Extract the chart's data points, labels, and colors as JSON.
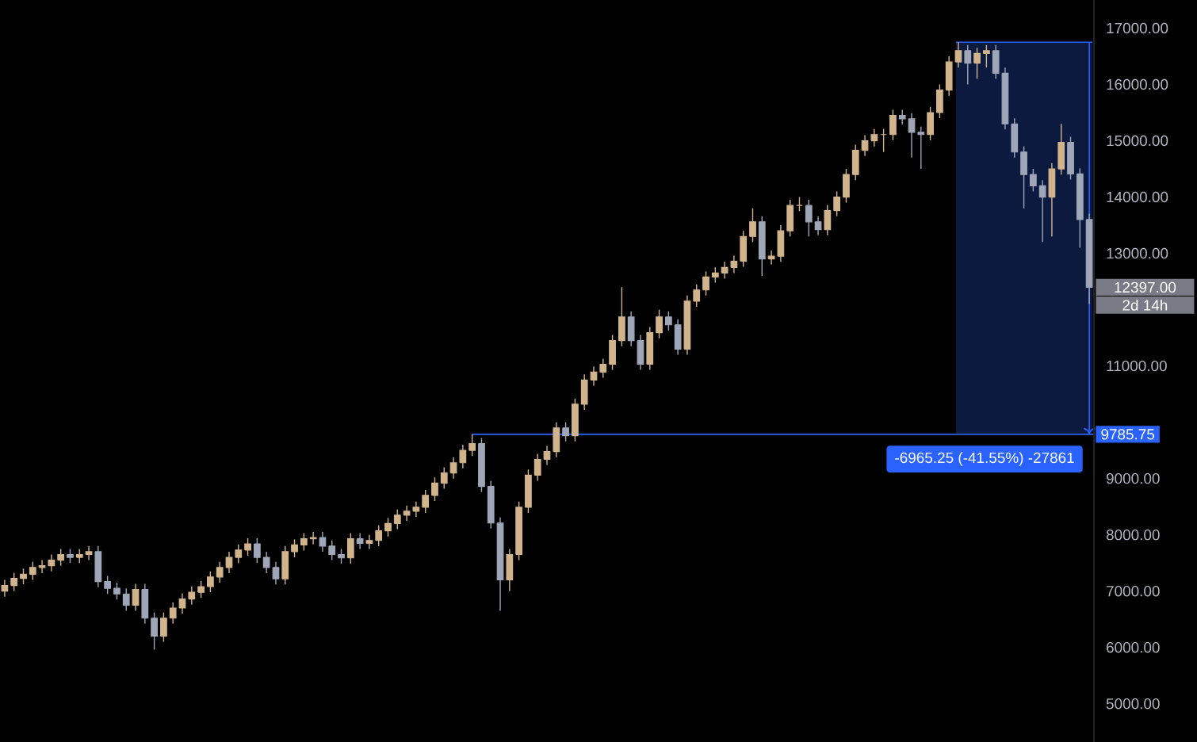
{
  "chart_data": {
    "type": "candlestick",
    "categories": [
      null,
      null,
      null,
      null,
      null,
      null,
      null,
      null,
      null,
      null,
      null,
      null,
      null,
      null,
      null,
      null,
      null,
      null,
      null,
      null,
      null,
      null,
      null,
      null,
      null,
      null,
      null,
      null,
      null,
      null,
      null,
      null,
      null,
      null,
      null,
      null,
      null,
      null,
      null,
      null,
      null,
      null,
      null,
      null,
      null,
      null,
      null,
      null,
      null,
      null,
      null,
      null,
      null,
      null,
      null,
      null,
      null,
      null,
      null,
      null,
      null,
      null,
      null,
      null,
      null,
      null,
      null,
      null,
      null,
      null,
      null,
      null,
      null,
      null,
      null,
      null,
      null,
      null,
      null,
      null,
      null,
      null,
      null,
      null,
      null,
      null,
      null,
      null,
      null,
      null,
      null,
      null,
      null,
      null,
      null,
      null,
      null,
      null,
      null,
      null,
      null,
      null,
      null,
      null,
      null,
      null,
      null,
      null,
      null,
      null,
      null,
      null,
      null,
      null,
      null,
      null,
      null
    ],
    "ohlc": [
      [
        7000,
        7200,
        6900,
        7100
      ],
      [
        7100,
        7325,
        7000,
        7225
      ],
      [
        7225,
        7400,
        7125,
        7300
      ],
      [
        7300,
        7520,
        7200,
        7420
      ],
      [
        7420,
        7550,
        7320,
        7450
      ],
      [
        7450,
        7650,
        7350,
        7550
      ],
      [
        7550,
        7750,
        7450,
        7650
      ],
      [
        7650,
        7750,
        7500,
        7600
      ],
      [
        7600,
        7750,
        7500,
        7650
      ],
      [
        7650,
        7800,
        7550,
        7700
      ],
      [
        7700,
        7800,
        7070,
        7170
      ],
      [
        7170,
        7270,
        6950,
        7050
      ],
      [
        7050,
        7150,
        6850,
        6950
      ],
      [
        6950,
        7050,
        6650,
        6750
      ],
      [
        6750,
        7130,
        6650,
        7030
      ],
      [
        7030,
        7130,
        6420,
        6520
      ],
      [
        6520,
        6620,
        5960,
        6200
      ],
      [
        6200,
        6620,
        6100,
        6520
      ],
      [
        6520,
        6800,
        6420,
        6700
      ],
      [
        6700,
        6960,
        6600,
        6860
      ],
      [
        6860,
        7080,
        6760,
        6980
      ],
      [
        6980,
        7180,
        6880,
        7080
      ],
      [
        7080,
        7350,
        6980,
        7250
      ],
      [
        7250,
        7520,
        7150,
        7420
      ],
      [
        7420,
        7700,
        7320,
        7600
      ],
      [
        7600,
        7830,
        7500,
        7730
      ],
      [
        7730,
        7940,
        7630,
        7840
      ],
      [
        7840,
        7940,
        7500,
        7600
      ],
      [
        7600,
        7700,
        7320,
        7420
      ],
      [
        7420,
        7520,
        7120,
        7220
      ],
      [
        7220,
        7800,
        7120,
        7700
      ],
      [
        7700,
        7920,
        7600,
        7820
      ],
      [
        7820,
        8030,
        7720,
        7930
      ],
      [
        7930,
        8050,
        7830,
        7950
      ],
      [
        7950,
        8050,
        7700,
        7800
      ],
      [
        7800,
        7900,
        7550,
        7650
      ],
      [
        7650,
        7750,
        7490,
        7590
      ],
      [
        7590,
        8030,
        7490,
        7930
      ],
      [
        7930,
        8030,
        7750,
        7850
      ],
      [
        7850,
        8000,
        7750,
        7900
      ],
      [
        7900,
        8170,
        7800,
        8070
      ],
      [
        8070,
        8300,
        7970,
        8200
      ],
      [
        8200,
        8450,
        8100,
        8350
      ],
      [
        8350,
        8520,
        8250,
        8420
      ],
      [
        8420,
        8590,
        8320,
        8490
      ],
      [
        8490,
        8800,
        8390,
        8700
      ],
      [
        8700,
        9020,
        8600,
        8920
      ],
      [
        8920,
        9200,
        8820,
        9100
      ],
      [
        9100,
        9380,
        9000,
        9280
      ],
      [
        9280,
        9600,
        9180,
        9500
      ],
      [
        9500,
        9785.75,
        9400,
        9620
      ],
      [
        9620,
        9720,
        8760,
        8860
      ],
      [
        8860,
        8960,
        8110,
        8210
      ],
      [
        8210,
        8310,
        6650,
        7200
      ],
      [
        7200,
        7750,
        7000,
        7650
      ],
      [
        7650,
        8590,
        7550,
        8490
      ],
      [
        8490,
        9160,
        8390,
        9060
      ],
      [
        9060,
        9440,
        8960,
        9340
      ],
      [
        9340,
        9580,
        9240,
        9480
      ],
      [
        9480,
        10000,
        9380,
        9900
      ],
      [
        9900,
        10000,
        9660,
        9760
      ],
      [
        9760,
        10420,
        9660,
        10320
      ],
      [
        10320,
        10850,
        10220,
        10750
      ],
      [
        10750,
        10990,
        10650,
        10890
      ],
      [
        10890,
        11130,
        10790,
        11030
      ],
      [
        11030,
        11550,
        10930,
        11450
      ],
      [
        11450,
        12400,
        11350,
        11870
      ],
      [
        11870,
        11970,
        11350,
        11450
      ],
      [
        11450,
        11550,
        10930,
        11030
      ],
      [
        11030,
        11690,
        10930,
        11590
      ],
      [
        11590,
        12000,
        11490,
        11870
      ],
      [
        11870,
        11970,
        11630,
        11730
      ],
      [
        11730,
        11830,
        11200,
        11300
      ],
      [
        11300,
        12250,
        11200,
        12150
      ],
      [
        12150,
        12450,
        12050,
        12350
      ],
      [
        12350,
        12680,
        12250,
        12580
      ],
      [
        12580,
        12750,
        12480,
        12650
      ],
      [
        12650,
        12850,
        12550,
        12750
      ],
      [
        12750,
        12960,
        12650,
        12860
      ],
      [
        12860,
        13400,
        12760,
        13300
      ],
      [
        13300,
        13800,
        13200,
        13560
      ],
      [
        13560,
        13660,
        12600,
        12900
      ],
      [
        12900,
        13050,
        12800,
        12950
      ],
      [
        12950,
        13500,
        12850,
        13400
      ],
      [
        13400,
        13950,
        13300,
        13850
      ],
      [
        13850,
        14000,
        13750,
        13850
      ],
      [
        13850,
        13950,
        13300,
        13560
      ],
      [
        13560,
        13660,
        13320,
        13420
      ],
      [
        13420,
        13860,
        13320,
        13760
      ],
      [
        13760,
        14100,
        13660,
        14000
      ],
      [
        14000,
        14500,
        13900,
        14400
      ],
      [
        14400,
        14930,
        14300,
        14830
      ],
      [
        14830,
        15100,
        14730,
        15000
      ],
      [
        15000,
        15210,
        14900,
        15110
      ],
      [
        15110,
        15210,
        14800,
        15110
      ],
      [
        15110,
        15550,
        15010,
        15450
      ],
      [
        15450,
        15550,
        15290,
        15390
      ],
      [
        15390,
        15490,
        14700,
        15150
      ],
      [
        15150,
        15250,
        14500,
        15110
      ],
      [
        15110,
        15600,
        15010,
        15500
      ],
      [
        15500,
        16000,
        15400,
        15900
      ],
      [
        15900,
        16500,
        15800,
        16400
      ],
      [
        16400,
        16751,
        16300,
        16600
      ],
      [
        16600,
        16700,
        16000,
        16380
      ],
      [
        16380,
        16650,
        16100,
        16550
      ],
      [
        16550,
        16700,
        16300,
        16600
      ],
      [
        16600,
        16700,
        16100,
        16200
      ],
      [
        16200,
        16300,
        15200,
        15300
      ],
      [
        15300,
        15400,
        14700,
        14800
      ],
      [
        14800,
        14900,
        13800,
        14400
      ],
      [
        14400,
        14500,
        14100,
        14200
      ],
      [
        14200,
        14300,
        13200,
        14000
      ],
      [
        14000,
        14600,
        13300,
        14500
      ],
      [
        14500,
        15300,
        14400,
        14970
      ],
      [
        14970,
        15070,
        14310,
        14410
      ],
      [
        14410,
        14510,
        13100,
        13600
      ],
      [
        13600,
        13700,
        12100,
        12397
      ]
    ],
    "ylim": [
      4320,
      17500
    ],
    "yticks": [
      {
        "value": 5000,
        "label": "5000.00"
      },
      {
        "value": 6000,
        "label": "6000.00"
      },
      {
        "value": 7000,
        "label": "7000.00"
      },
      {
        "value": 8000,
        "label": "8000.00"
      },
      {
        "value": 9000,
        "label": "9000.00"
      },
      {
        "value": 11000,
        "label": "11000.00"
      },
      {
        "value": 13000,
        "label": "13000.00"
      },
      {
        "value": 14000,
        "label": "14000.00"
      },
      {
        "value": 15000,
        "label": "15000.00"
      },
      {
        "value": 16000,
        "label": "16000.00"
      },
      {
        "value": 17000,
        "label": "17000.00"
      }
    ],
    "ref_lines": [
      {
        "axis": "y",
        "value": 9785.75,
        "label": "9785.75",
        "color": "#2962ff"
      }
    ],
    "annotations": [
      "-6965.25 (-41.55%) -27861",
      "12397.00",
      "2d 14h"
    ]
  }
}
